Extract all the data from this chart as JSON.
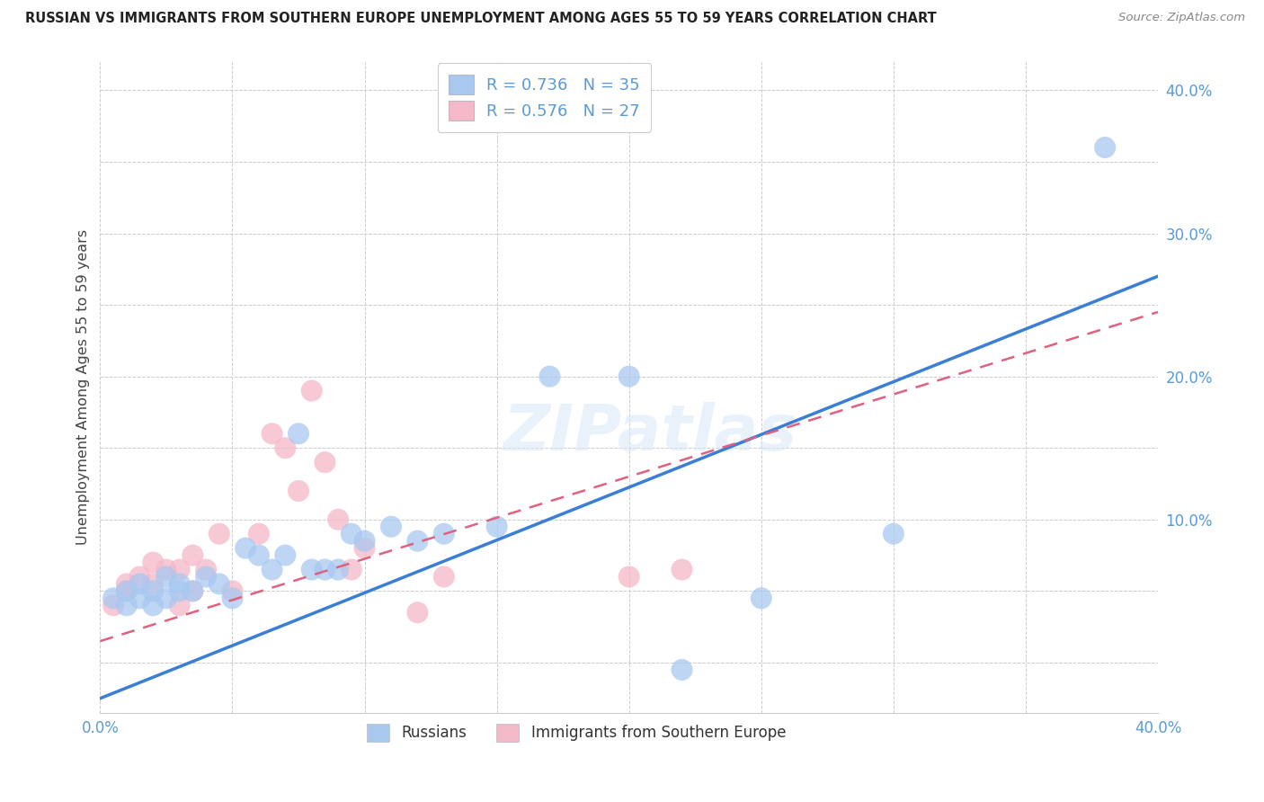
{
  "title": "RUSSIAN VS IMMIGRANTS FROM SOUTHERN EUROPE UNEMPLOYMENT AMONG AGES 55 TO 59 YEARS CORRELATION CHART",
  "source": "Source: ZipAtlas.com",
  "ylabel": "Unemployment Among Ages 55 to 59 years",
  "xlim": [
    0.0,
    0.4
  ],
  "ylim": [
    -0.035,
    0.42
  ],
  "x_ticks": [
    0.0,
    0.05,
    0.1,
    0.15,
    0.2,
    0.25,
    0.3,
    0.35,
    0.4
  ],
  "y_ticks": [
    0.0,
    0.05,
    0.1,
    0.15,
    0.2,
    0.25,
    0.3,
    0.35,
    0.4
  ],
  "blue_color": "#A8C8F0",
  "pink_color": "#F5B8C8",
  "blue_line_color": "#3A7FD5",
  "pink_line_color": "#E06080",
  "legend_R_blue": "0.736",
  "legend_N_blue": "35",
  "legend_R_pink": "0.576",
  "legend_N_pink": "27",
  "legend_label_blue": "Russians",
  "legend_label_pink": "Immigrants from Southern Europe",
  "watermark": "ZIPatlas",
  "blue_scatter_x": [
    0.005,
    0.01,
    0.01,
    0.015,
    0.015,
    0.02,
    0.02,
    0.025,
    0.025,
    0.03,
    0.03,
    0.035,
    0.04,
    0.045,
    0.05,
    0.055,
    0.06,
    0.065,
    0.07,
    0.075,
    0.08,
    0.085,
    0.09,
    0.095,
    0.1,
    0.11,
    0.12,
    0.13,
    0.15,
    0.17,
    0.2,
    0.22,
    0.25,
    0.3,
    0.38
  ],
  "blue_scatter_y": [
    0.045,
    0.04,
    0.05,
    0.045,
    0.055,
    0.04,
    0.05,
    0.045,
    0.06,
    0.05,
    0.055,
    0.05,
    0.06,
    0.055,
    0.045,
    0.08,
    0.075,
    0.065,
    0.075,
    0.16,
    0.065,
    0.065,
    0.065,
    0.09,
    0.085,
    0.095,
    0.085,
    0.09,
    0.095,
    0.2,
    0.2,
    -0.005,
    0.045,
    0.09,
    0.36
  ],
  "pink_scatter_x": [
    0.005,
    0.01,
    0.01,
    0.015,
    0.02,
    0.02,
    0.025,
    0.03,
    0.03,
    0.035,
    0.035,
    0.04,
    0.045,
    0.05,
    0.06,
    0.065,
    0.07,
    0.075,
    0.08,
    0.085,
    0.09,
    0.095,
    0.1,
    0.12,
    0.13,
    0.2,
    0.22
  ],
  "pink_scatter_y": [
    0.04,
    0.05,
    0.055,
    0.06,
    0.055,
    0.07,
    0.065,
    0.04,
    0.065,
    0.075,
    0.05,
    0.065,
    0.09,
    0.05,
    0.09,
    0.16,
    0.15,
    0.12,
    0.19,
    0.14,
    0.1,
    0.065,
    0.08,
    0.035,
    0.06,
    0.06,
    0.065
  ],
  "blue_trend_x": [
    0.0,
    0.4
  ],
  "blue_trend_y": [
    -0.025,
    0.27
  ],
  "pink_trend_x": [
    0.0,
    0.4
  ],
  "pink_trend_y": [
    0.015,
    0.245
  ],
  "background_color": "#FFFFFF",
  "grid_color": "#CCCCCC",
  "tick_color": "#5B9BD5"
}
